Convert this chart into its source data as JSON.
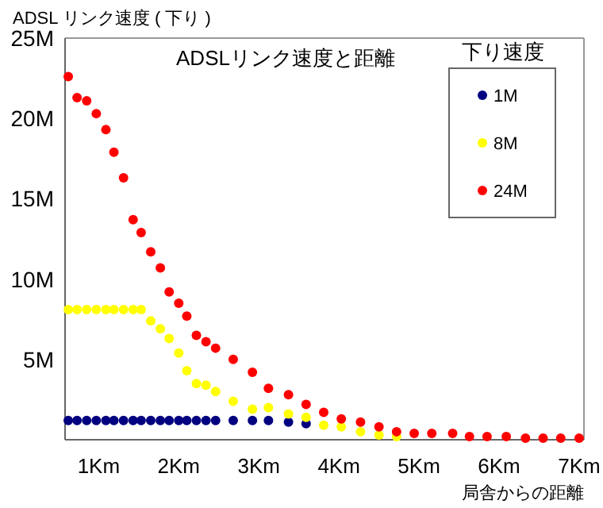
{
  "chart_data": {
    "type": "scatter",
    "title": "ADSLリンク速度と距離",
    "ylabel": "ADSL リンク速度 ( 下り )",
    "xlabel": "局舎からの距離",
    "legend_title": "下り速度",
    "legend": "top right",
    "marker": "circle",
    "grid": false,
    "x": [
      0.62,
      0.73,
      0.85,
      0.97,
      1.09,
      1.19,
      1.31,
      1.43,
      1.53,
      1.65,
      1.77,
      1.88,
      2.0,
      2.1,
      2.22,
      2.34,
      2.46,
      2.68,
      2.92,
      3.12,
      3.37,
      3.59,
      3.81,
      4.03,
      4.27,
      4.5,
      4.72,
      4.94,
      5.16,
      5.42,
      5.63,
      5.85,
      6.09,
      6.33,
      6.55,
      6.77,
      7.0
    ],
    "xlim": [
      0.58,
      7.06
    ],
    "ylim": [
      0,
      25
    ],
    "xticks": [
      {
        "value": 1,
        "label": "1Km"
      },
      {
        "value": 2,
        "label": "2Km"
      },
      {
        "value": 3,
        "label": "3Km"
      },
      {
        "value": 4,
        "label": "4Km"
      },
      {
        "value": 5,
        "label": "5Km"
      },
      {
        "value": 6,
        "label": "6Km"
      },
      {
        "value": 7,
        "label": "7Km"
      }
    ],
    "yticks": [
      {
        "value": 5,
        "label": "5M"
      },
      {
        "value": 10,
        "label": "10M"
      },
      {
        "value": 15,
        "label": "15M"
      },
      {
        "value": 20,
        "label": "20M"
      },
      {
        "value": 25,
        "label": "25M"
      }
    ],
    "series": [
      {
        "name": "1M",
        "color": "#000080",
        "values": [
          1.2,
          1.2,
          1.2,
          1.2,
          1.2,
          1.2,
          1.2,
          1.2,
          1.2,
          1.2,
          1.2,
          1.2,
          1.2,
          1.2,
          1.2,
          1.2,
          1.2,
          1.2,
          1.2,
          1.2,
          1.1,
          1.0,
          null,
          null,
          null,
          null,
          null,
          null,
          null,
          null,
          null,
          null,
          null,
          null,
          null,
          null,
          null
        ]
      },
      {
        "name": "8M",
        "color": "#ffff00",
        "values": [
          8.1,
          8.1,
          8.1,
          8.1,
          8.1,
          8.1,
          8.1,
          8.1,
          8.1,
          7.4,
          6.9,
          6.3,
          5.4,
          4.3,
          3.5,
          3.4,
          3.0,
          2.4,
          1.9,
          2.0,
          1.6,
          1.4,
          0.9,
          0.8,
          0.5,
          0.3,
          0.2,
          null,
          null,
          null,
          null,
          null,
          null,
          null,
          null,
          null,
          null
        ]
      },
      {
        "name": "24M",
        "color": "#ff0000",
        "values": [
          22.6,
          21.3,
          21.1,
          20.3,
          19.3,
          17.9,
          16.3,
          13.7,
          12.9,
          11.7,
          10.7,
          9.2,
          8.5,
          7.7,
          6.5,
          6.1,
          5.7,
          5.0,
          4.2,
          3.2,
          2.8,
          2.2,
          1.7,
          1.3,
          1.1,
          0.8,
          0.5,
          0.4,
          0.4,
          0.4,
          0.2,
          0.2,
          0.2,
          0.1,
          0.1,
          0.1,
          0.1
        ]
      }
    ]
  }
}
